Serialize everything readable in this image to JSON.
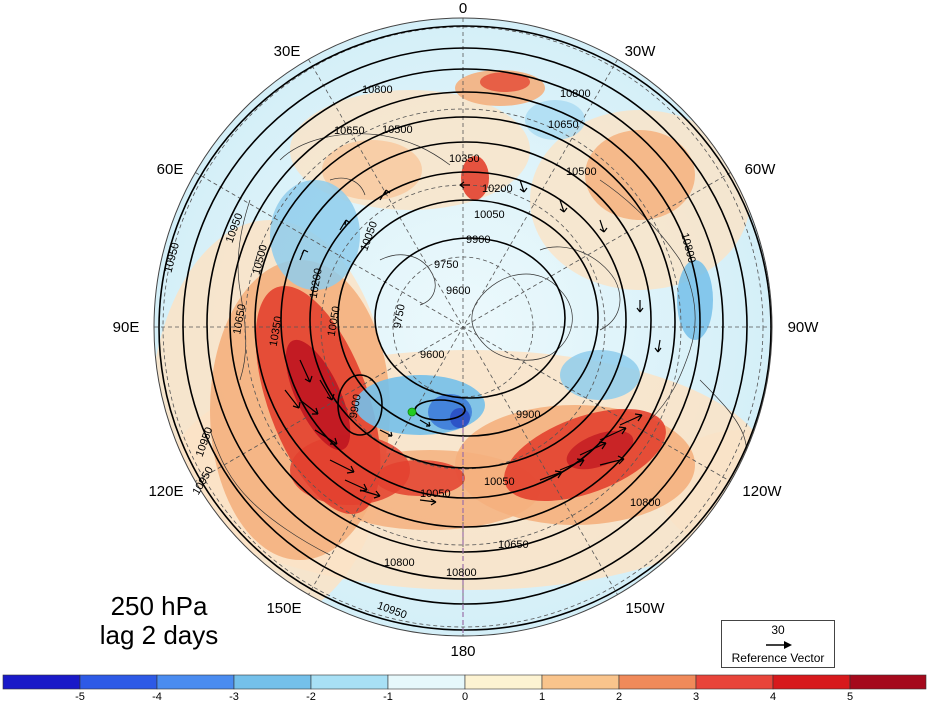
{
  "map": {
    "projection": "north-polar-stereographic",
    "longitude_labels": [
      "0",
      "30W",
      "60W",
      "90W",
      "120W",
      "150W",
      "180",
      "150E",
      "120E",
      "90E",
      "60E",
      "30E"
    ],
    "contour_labels": [
      "10800",
      "10650",
      "10500",
      "10350",
      "10200",
      "10050",
      "9900",
      "9750",
      "9600",
      "10950",
      "10800",
      "10650",
      "10500",
      "10800",
      "10950",
      "9600",
      "9750",
      "9900",
      "10050",
      "10800",
      "10650",
      "10950",
      "10350",
      "10050",
      "10050",
      "10500",
      "10650",
      "10800",
      "9900",
      "10200",
      "10800",
      "10950",
      "10950",
      "10050"
    ],
    "colors": {
      "strong_positive": "#d7191c",
      "positive": "#f4a582",
      "weak_positive": "#fddbc7",
      "weak_negative": "#d1ecf8",
      "negative": "#74c0ea",
      "strong_negative": "#3a6fd8",
      "marker": "#22cc22"
    }
  },
  "caption": {
    "level": "250 hPa",
    "lag": "lag 2 days"
  },
  "reference_vector": {
    "value": "30",
    "label": "Reference Vector"
  },
  "colorbar": {
    "tick_labels": [
      "-5",
      "-4",
      "-3",
      "-2",
      "-1",
      "0",
      "1",
      "2",
      "3",
      "4",
      "5"
    ],
    "colors": [
      "#1a1ac8",
      "#2d5ae6",
      "#4a8cf0",
      "#74c0ea",
      "#a8e0f5",
      "#e6f8fb",
      "#fdf3d2",
      "#f9c48c",
      "#f08a5a",
      "#e8443a",
      "#d7191c",
      "#a5091c"
    ]
  }
}
